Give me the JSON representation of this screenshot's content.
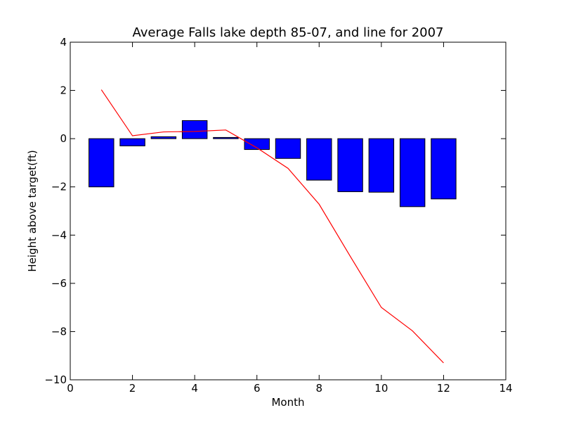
{
  "chart_data": {
    "type": "bar",
    "title": "Average Falls lake depth 85-07, and line for 2007",
    "xlabel": "Month",
    "ylabel": "Height above target(ft)",
    "xlim": [
      0,
      14
    ],
    "ylim": [
      -10,
      4
    ],
    "xticks": [
      0,
      2,
      4,
      6,
      8,
      10,
      12,
      14
    ],
    "yticks": [
      4,
      2,
      0,
      -2,
      -4,
      -6,
      -8,
      -10
    ],
    "grid": false,
    "bar_color": "#0000ff",
    "line_color": "#ff0000",
    "bar_width_months": 0.8,
    "series": [
      {
        "type": "bar",
        "x": [
          1,
          2,
          3,
          4,
          5,
          6,
          7,
          8,
          9,
          10,
          11,
          12
        ],
        "values": [
          -2.0,
          -0.3,
          0.08,
          0.75,
          0.05,
          -0.45,
          -0.82,
          -1.72,
          -2.2,
          -2.22,
          -2.82,
          -2.5
        ]
      },
      {
        "type": "line",
        "x": [
          1,
          2,
          3,
          4,
          5,
          6,
          7,
          8,
          9,
          10,
          11,
          12
        ],
        "values": [
          2.03,
          0.12,
          0.28,
          0.3,
          0.36,
          -0.38,
          -1.23,
          -2.72,
          -4.88,
          -7.0,
          -7.97,
          -9.3
        ]
      }
    ]
  }
}
